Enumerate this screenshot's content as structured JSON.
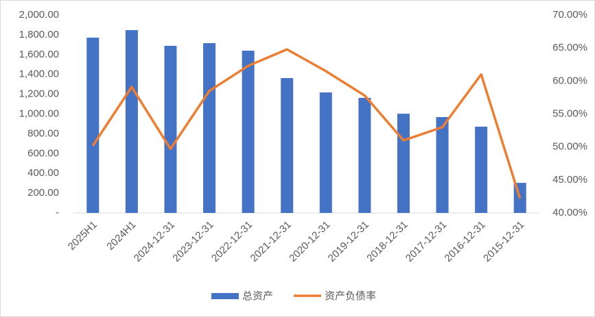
{
  "chart_data": {
    "type": "bar_line",
    "categories": [
      "2025H1",
      "2024H1",
      "2024-12-31",
      "2023-12-31",
      "2022-12-31",
      "2021-12-31",
      "2020-12-31",
      "2019-12-31",
      "2018-12-31",
      "2017-12-31",
      "2016-12-31",
      "2015-12-31"
    ],
    "series": [
      {
        "name": "总资产",
        "type": "bar",
        "color": "#4472c4",
        "values": [
          1772,
          1848,
          1689,
          1716,
          1640,
          1363,
          1218,
          1163,
          1003,
          969,
          872,
          304
        ]
      },
      {
        "name": "资产负债率",
        "type": "line",
        "axis": "y2",
        "color": "#ed7d31",
        "values": [
          50.2,
          59.1,
          49.7,
          58.5,
          62.3,
          64.8,
          61.5,
          57.8,
          51.0,
          53.0,
          61.0,
          42.2
        ]
      }
    ],
    "ylim": [
      0,
      2000
    ],
    "yticks": [
      {
        "value": 0,
        "label": "-"
      },
      {
        "value": 200,
        "label": "200.00"
      },
      {
        "value": 400,
        "label": "400.00"
      },
      {
        "value": 600,
        "label": "600.00"
      },
      {
        "value": 800,
        "label": "800.00"
      },
      {
        "value": 1000,
        "label": "1,000.00"
      },
      {
        "value": 1200,
        "label": "1,200.00"
      },
      {
        "value": 1400,
        "label": "1,400.00"
      },
      {
        "value": 1600,
        "label": "1,600.00"
      },
      {
        "value": 1800,
        "label": "1,800.00"
      },
      {
        "value": 2000,
        "label": "2,000.00"
      }
    ],
    "y2lim": [
      40,
      70
    ],
    "y2ticks": [
      {
        "value": 40,
        "label": "40.00%"
      },
      {
        "value": 45,
        "label": "45.00%"
      },
      {
        "value": 50,
        "label": "50.00%"
      },
      {
        "value": 55,
        "label": "55.00%"
      },
      {
        "value": 60,
        "label": "60.00%"
      },
      {
        "value": 65,
        "label": "65.00%"
      },
      {
        "value": 70,
        "label": "70.00%"
      }
    ],
    "grid": false,
    "legend": "bottom"
  }
}
